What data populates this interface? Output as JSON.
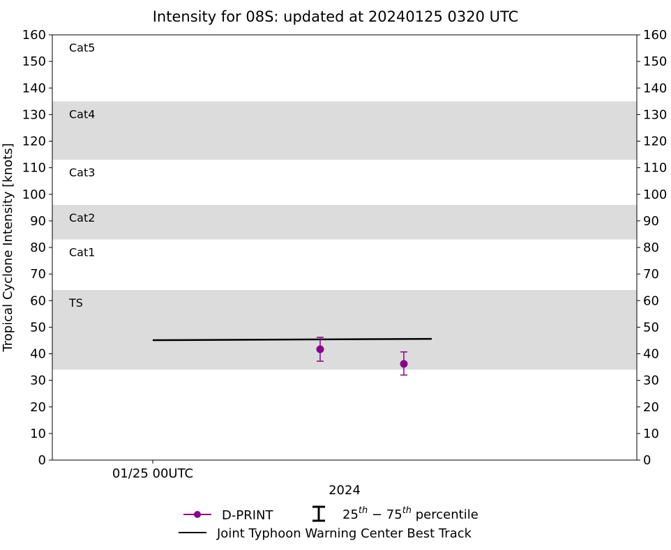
{
  "chart_data": {
    "type": "line",
    "title": "Intensity for 08S: updated at 20240125 0320 UTC",
    "xlabel": "2024",
    "ylabel": "Tropical Cyclone Intensity [knots]",
    "ylim": [
      0,
      160
    ],
    "yticks": [
      0,
      10,
      20,
      30,
      40,
      50,
      60,
      70,
      80,
      90,
      100,
      110,
      120,
      130,
      140,
      150,
      160
    ],
    "xlim": [
      "2024-01-24T22:48",
      "2024-01-25T05:47"
    ],
    "xticks": [
      {
        "x": "2024-01-25T00:00",
        "label": "01/25 00UTC"
      }
    ],
    "grid": false,
    "category_bands": [
      {
        "label": "TS",
        "min": 34,
        "max": 64,
        "shaded": true
      },
      {
        "label": "Cat1",
        "min": 64,
        "max": 83,
        "shaded": false
      },
      {
        "label": "Cat2",
        "min": 83,
        "max": 96,
        "shaded": true
      },
      {
        "label": "Cat3",
        "min": 96,
        "max": 113,
        "shaded": false
      },
      {
        "label": "Cat4",
        "min": 113,
        "max": 135,
        "shaded": true
      },
      {
        "label": "Cat5",
        "min": 135,
        "max": 160,
        "shaded": false
      }
    ],
    "band_color": "#dcdcdc",
    "series": [
      {
        "name": "D-PRINT",
        "color": "#8b008b",
        "marker": "circle",
        "points": [
          {
            "x": "2024-01-25T02:00",
            "y": 41.7,
            "p25": 37.2,
            "p75": 46.2
          },
          {
            "x": "2024-01-25T03:00",
            "y": 36.2,
            "p25": 32.0,
            "p75": 40.7
          }
        ]
      },
      {
        "name": "Joint Typhoon Warning Center Best Track",
        "color": "#000000",
        "points": [
          {
            "x": "2024-01-25T00:00",
            "y": 45.1
          },
          {
            "x": "2024-01-25T03:20",
            "y": 45.6
          }
        ]
      }
    ],
    "legend": {
      "placement": "bottom-center",
      "errorbar_label_base1": "25",
      "errorbar_sup1": "th",
      "errorbar_mid": " − 75",
      "errorbar_sup2": "th",
      "errorbar_tail": " percentile"
    }
  }
}
